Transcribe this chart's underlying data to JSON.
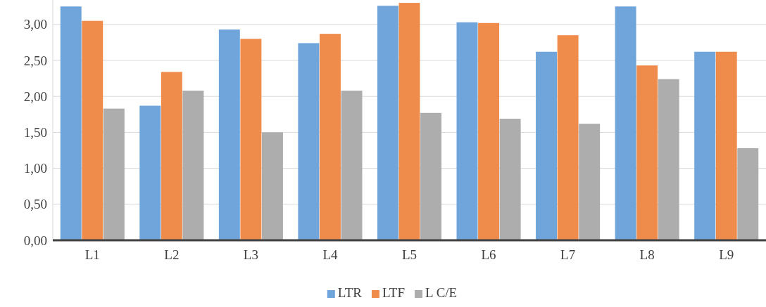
{
  "chart_data": {
    "type": "bar",
    "categories": [
      "L1",
      "L2",
      "L3",
      "L4",
      "L5",
      "L6",
      "L7",
      "L8",
      "L9"
    ],
    "series": [
      {
        "name": "LTR",
        "color": "#6fa5da",
        "values": [
          3.25,
          1.87,
          2.93,
          2.74,
          3.26,
          3.03,
          2.62,
          3.25,
          2.62
        ]
      },
      {
        "name": "LTF",
        "color": "#ef8c4c",
        "values": [
          3.05,
          2.34,
          2.8,
          2.87,
          3.3,
          3.02,
          2.85,
          2.43,
          2.62
        ]
      },
      {
        "name": "L C/E",
        "color": "#adadad",
        "values": [
          1.83,
          2.08,
          1.5,
          2.08,
          1.77,
          1.69,
          1.62,
          2.24,
          1.28
        ]
      }
    ],
    "ylim": [
      0,
      3.34
    ],
    "yticks": [
      {
        "value": 0,
        "label": "0,00"
      },
      {
        "value": 0.5,
        "label": "0,50"
      },
      {
        "value": 1,
        "label": "1,00"
      },
      {
        "value": 1.5,
        "label": "1,50"
      },
      {
        "value": 2,
        "label": "2,00"
      },
      {
        "value": 2.5,
        "label": "2,50"
      },
      {
        "value": 3,
        "label": "3,00"
      }
    ],
    "grid": "y",
    "legend": "bottom"
  }
}
